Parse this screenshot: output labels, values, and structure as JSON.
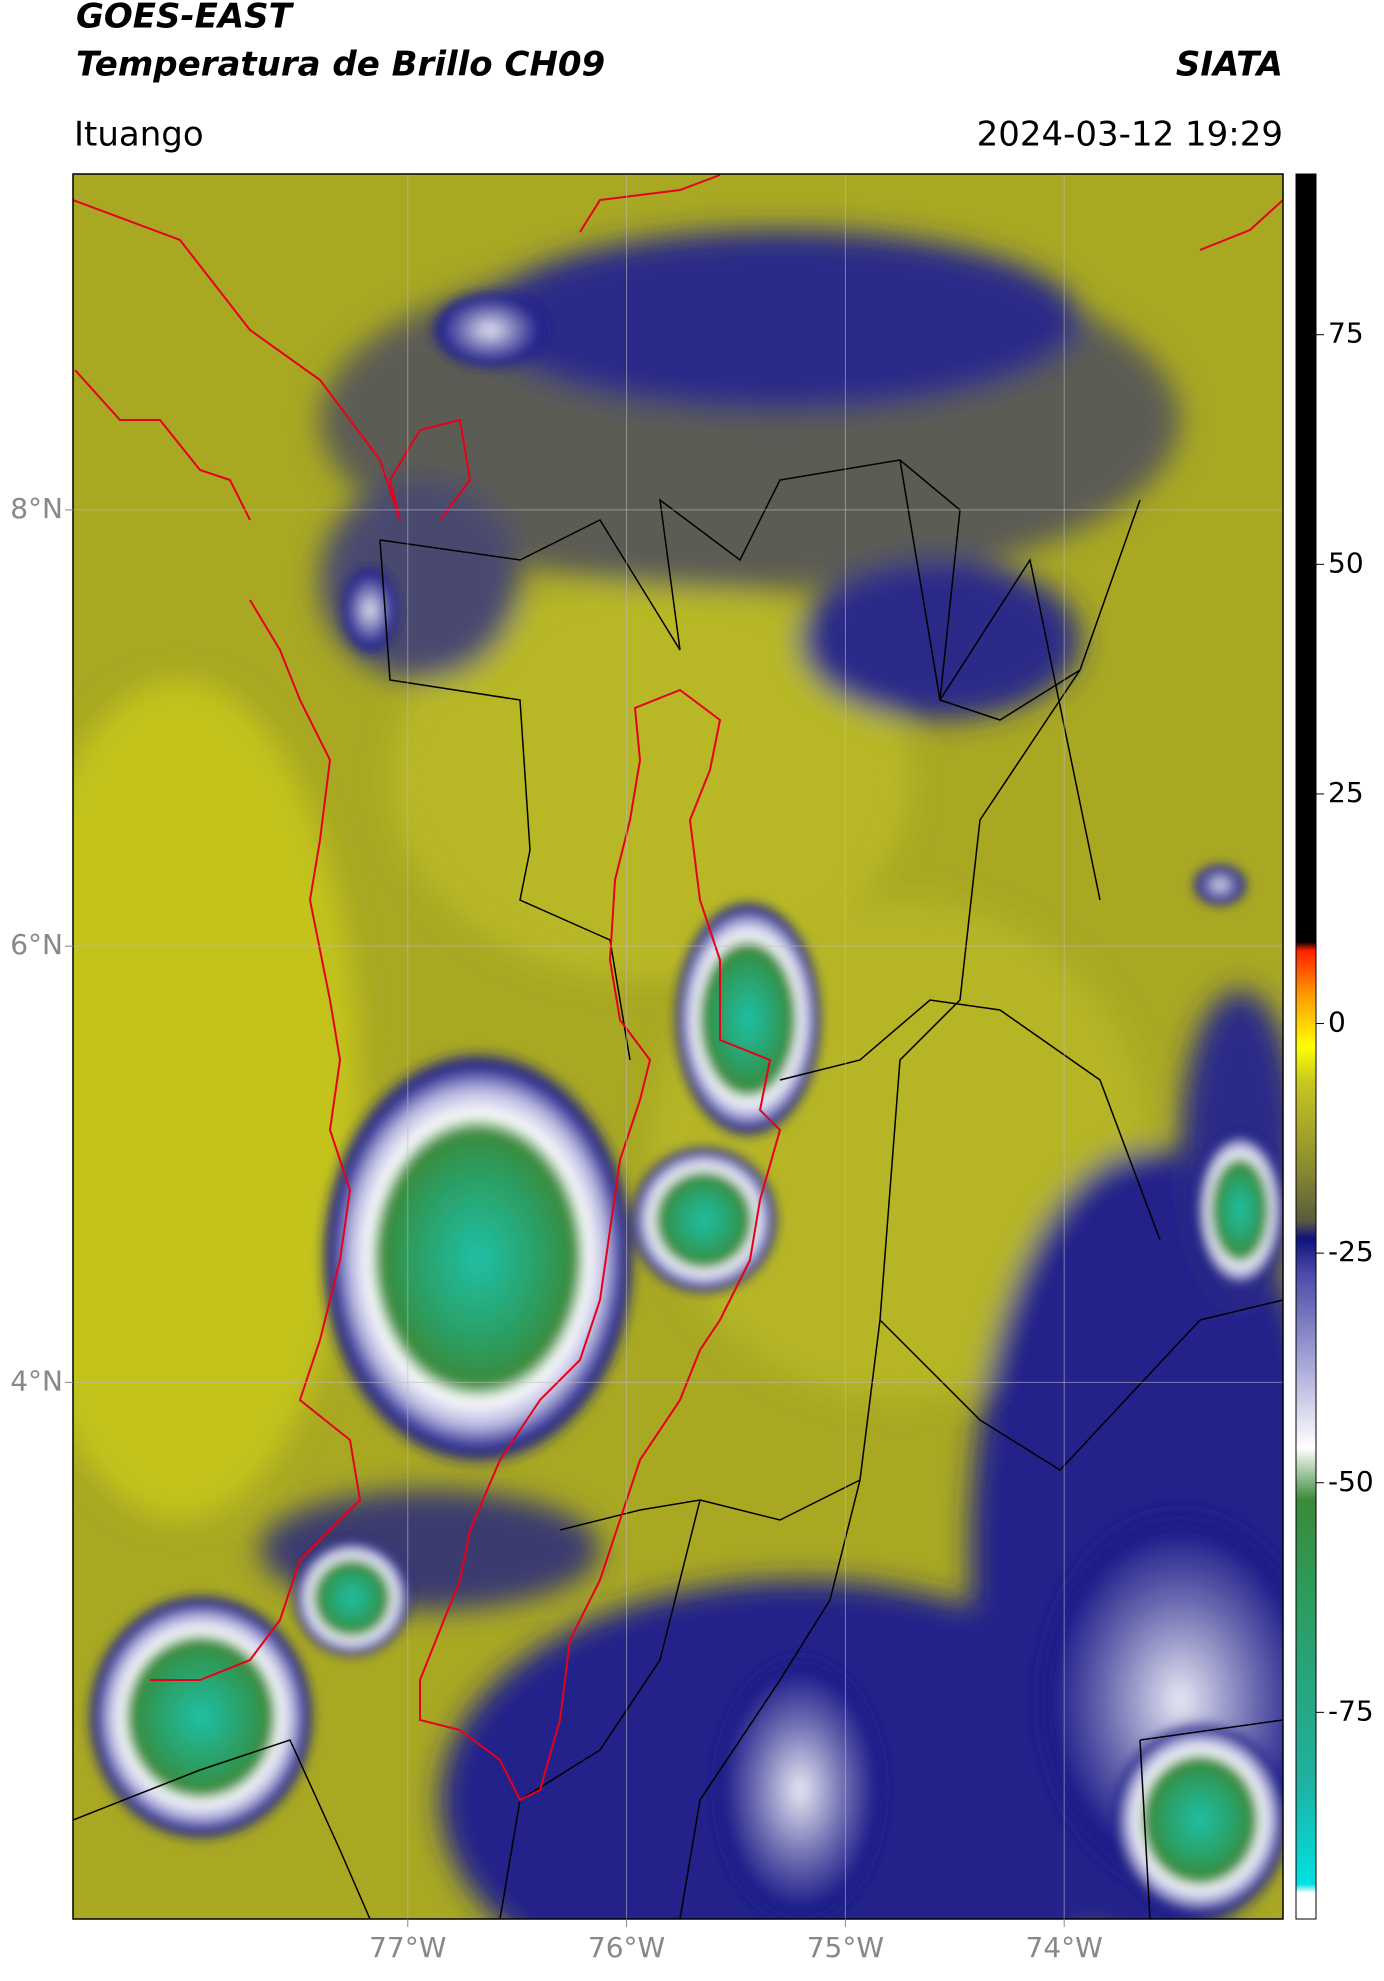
{
  "header": {
    "title": "GOES-EAST",
    "subtitle": "Temperatura de Brillo CH09",
    "brand": "SIATA",
    "location": "Ituango",
    "datetime": "2024-03-12 19:29"
  },
  "map": {
    "xlim": [
      -78.53,
      -73.0
    ],
    "ylim": [
      1.54,
      9.54
    ],
    "xticks": [
      {
        "value": -77,
        "label": "77°W"
      },
      {
        "value": -76,
        "label": "76°W"
      },
      {
        "value": -75,
        "label": "75°W"
      },
      {
        "value": -74,
        "label": "74°W"
      }
    ],
    "yticks": [
      {
        "value": 8,
        "label": "8°N"
      },
      {
        "value": 6,
        "label": "6°N"
      },
      {
        "value": 4,
        "label": "4°N"
      }
    ],
    "grid": true
  },
  "colorbar": {
    "lim": [
      -97.5,
      92.5
    ],
    "ticks": [
      75,
      50,
      25,
      0,
      -25,
      -50,
      -75
    ]
  }
}
